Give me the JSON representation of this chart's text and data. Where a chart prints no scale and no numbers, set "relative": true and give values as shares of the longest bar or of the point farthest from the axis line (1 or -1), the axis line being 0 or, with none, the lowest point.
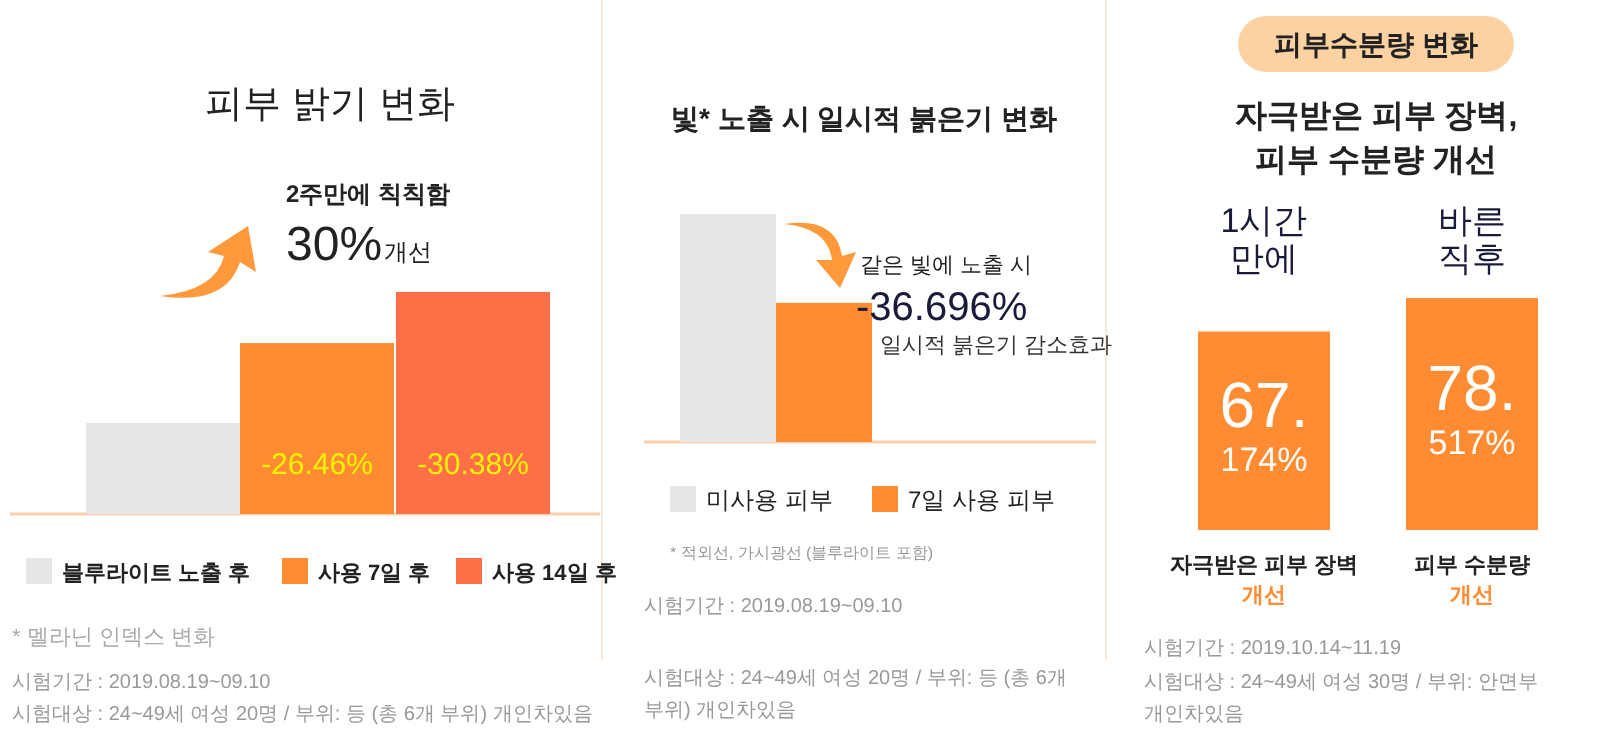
{
  "chart_data": [
    {
      "type": "bar",
      "title": "피부 밝기 변화",
      "relative": true,
      "legend": "bottom",
      "categories": [
        null
      ],
      "series": [
        {
          "name": "블루라이트 노출 후",
          "color": "#e6e6e6",
          "values": [
            0.41
          ]
        },
        {
          "name": "사용 7일 후",
          "color": "#ff8c32",
          "values": [
            0.77
          ]
        },
        {
          "name": "사용 14일 후",
          "color": "#ff7048",
          "values": [
            1
          ]
        }
      ],
      "annotations": [
        "2주만에 칙칙함",
        "30%",
        "개선",
        "-26.46%",
        "-30.38%",
        "* 멜라닌 인덱스 변화",
        "시험기간 : 2019.08.19~09.10",
        "시험대상 : 24~49세 여성 20명 / 부위: 등 (총 6개 부위) 개인차있음"
      ]
    },
    {
      "type": "bar",
      "title": "빛* 노출 시 일시적 붉은기 변화",
      "relative": true,
      "legend": "bottom",
      "categories": [
        null
      ],
      "series": [
        {
          "name": "미사용 피부",
          "color": "#e6e6e6",
          "values": [
            1
          ]
        },
        {
          "name": "7일 사용 피부",
          "color": "#ff8c32",
          "values": [
            0.61
          ]
        }
      ],
      "annotations": [
        "같은 빛에 노출 시",
        "-36.696%",
        "일시적 붉은기 감소효과",
        "* 적외선, 가시광선 (블루라이트 포함)",
        "시험기간 : 2019.08.19~09.10",
        "시험대상 : 24~49세 여성 20명 / 부위: 등 (총 6개 부위) 개인차있음"
      ]
    },
    {
      "type": "bar",
      "title": "피부수분량 변화",
      "subtitle": "자극받은 피부 장벽, 피부 수분량 개선",
      "categories": [
        "자극받은 피부 장벽",
        "피부 수분량"
      ],
      "series": [
        {
          "color": "#ff8c32",
          "values": [
            67.174,
            78.517
          ],
          "value_labels": [
            "67.174%",
            "78.517%"
          ]
        }
      ],
      "annotations": [
        "1시간 만에",
        "바른 직후",
        "개선",
        "개선",
        "시험기간 : 2019.10.14~11.19",
        "시험대상 : 24~49세 여성 30명 / 부위: 안면부 개인차있음"
      ]
    }
  ]
}
